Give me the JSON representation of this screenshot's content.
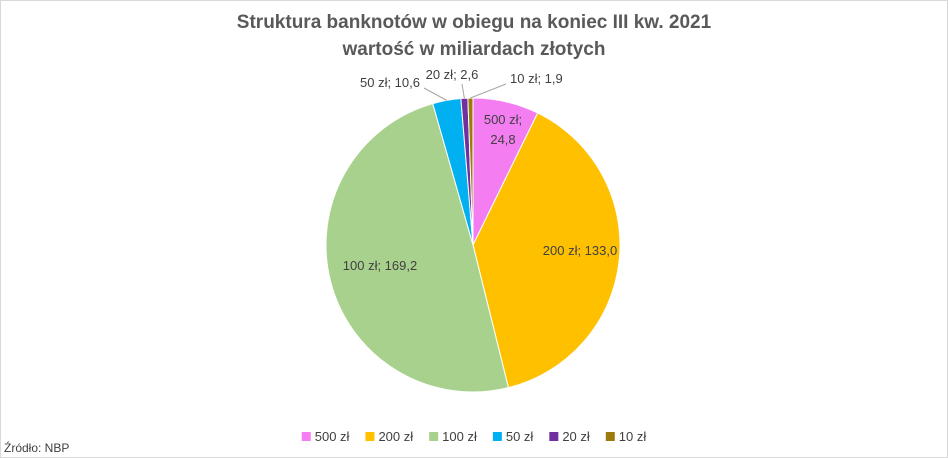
{
  "chart_data": {
    "type": "pie",
    "title": "Struktura banknotów w obiegu na koniec III kw. 2021",
    "subtitle": "wartość w miliardach złotych",
    "categories": [
      "500 zł",
      "200 zł",
      "100 zł",
      "50 zł",
      "20 zł",
      "10 zł"
    ],
    "values": [
      24.8,
      133.0,
      169.2,
      10.6,
      2.6,
      1.9
    ],
    "value_labels": [
      "500 zł; 24,8",
      "200 zł; 133,0",
      "100 zł; 169,2",
      "50 zł; 10,6",
      "20 zł; 2,6",
      "10 zł; 1,9"
    ],
    "colors": [
      "#f47ef1",
      "#ffc000",
      "#a9d18e",
      "#00b0f0",
      "#7030a0",
      "#9c7a0c"
    ],
    "legend": "bottom",
    "source": "Źródło: NBP"
  }
}
